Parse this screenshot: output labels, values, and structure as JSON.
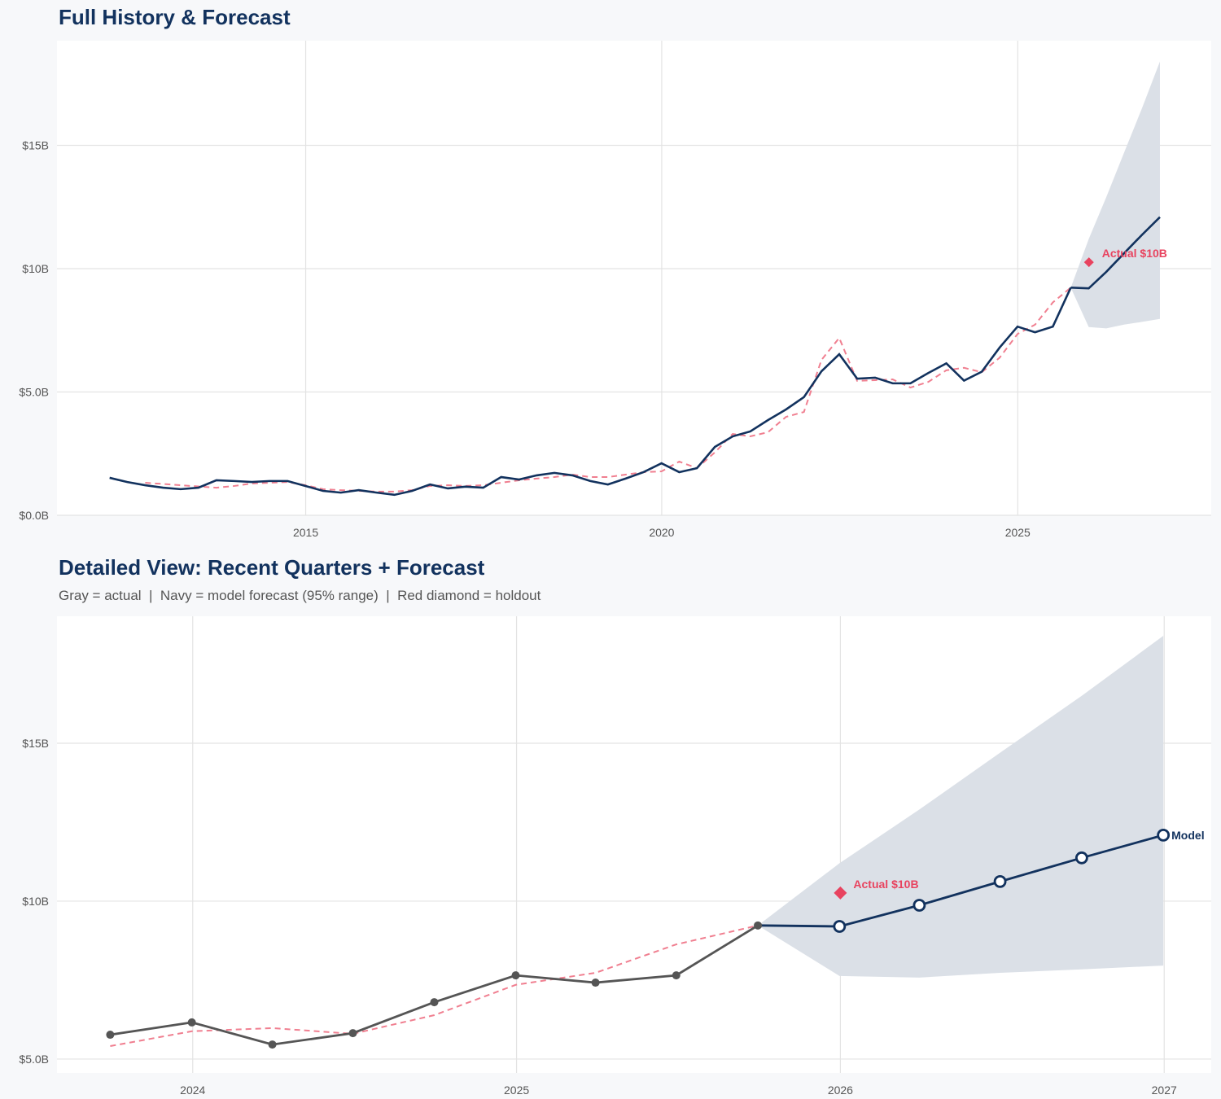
{
  "colors": {
    "navy": "#12325e",
    "gray": "#555555",
    "red": "#e8435f",
    "fitted": "#f07f90",
    "band": "#dbe0e7",
    "grid": "#e3e3e3",
    "background": "#f7f8fa",
    "plot": "#ffffff"
  },
  "chart_data": [
    {
      "type": "line",
      "title": "Full History & Forecast",
      "xlim": [
        "2011-07-05",
        "2027-09-20"
      ],
      "ylim": [
        0,
        19.24
      ],
      "grid": true,
      "x_ticks": [
        {
          "value": "2015-01-01",
          "label": "2015"
        },
        {
          "value": "2020-01-01",
          "label": "2020"
        },
        {
          "value": "2025-01-01",
          "label": "2025"
        }
      ],
      "y_ticks": [
        {
          "value": 0,
          "label": "$0.0B"
        },
        {
          "value": 5,
          "label": "$5.0B"
        },
        {
          "value": 10,
          "label": "$10B"
        },
        {
          "value": 15,
          "label": "$15B"
        }
      ],
      "history": {
        "start": "2012-03-31",
        "frequency": "quarterly",
        "values": [
          1.52,
          1.35,
          1.22,
          1.12,
          1.06,
          1.12,
          1.42,
          1.39,
          1.35,
          1.39,
          1.39,
          1.19,
          0.99,
          0.92,
          1.02,
          0.92,
          0.83,
          0.99,
          1.25,
          1.09,
          1.16,
          1.12,
          1.55,
          1.45,
          1.62,
          1.72,
          1.62,
          1.39,
          1.25,
          1.49,
          1.75,
          2.11,
          1.75,
          1.91,
          2.77,
          3.2,
          3.4,
          3.86,
          4.29,
          4.79,
          5.84,
          6.53,
          5.54,
          5.58,
          5.35,
          5.35,
          5.77,
          6.16,
          5.46,
          5.82,
          6.8,
          7.65,
          7.42,
          7.65,
          9.23
        ]
      },
      "fitted": {
        "start": "2012-09-30",
        "frequency": "quarterly",
        "values": [
          1.32,
          1.27,
          1.22,
          1.17,
          1.12,
          1.19,
          1.29,
          1.32,
          1.35,
          1.22,
          1.06,
          1.02,
          0.99,
          0.96,
          0.96,
          1.02,
          1.19,
          1.22,
          1.19,
          1.22,
          1.32,
          1.42,
          1.49,
          1.55,
          1.65,
          1.55,
          1.55,
          1.65,
          1.75,
          1.78,
          2.18,
          1.91,
          2.55,
          3.3,
          3.2,
          3.37,
          3.99,
          4.19,
          6.3,
          7.19,
          5.45,
          5.48,
          5.51,
          5.18,
          5.41,
          5.88,
          5.98,
          5.8,
          6.39,
          7.35,
          7.73,
          8.63,
          9.23
        ]
      },
      "forecast": {
        "dates": [
          "2025-09-30",
          "2025-12-31",
          "2026-03-31",
          "2026-06-30",
          "2026-09-30",
          "2026-12-31"
        ],
        "values": [
          9.23,
          9.2,
          9.87,
          10.62,
          11.37,
          12.09
        ],
        "upper": [
          9.23,
          11.2,
          12.9,
          14.7,
          16.5,
          18.4
        ],
        "lower": [
          9.23,
          7.63,
          7.58,
          7.73,
          7.84,
          7.96
        ]
      },
      "holdout": {
        "date": "2026-01-01",
        "value": 10.26,
        "label": "Actual $10B"
      }
    },
    {
      "type": "line",
      "title": "Detailed View: Recent Quarters + Forecast",
      "subtitle": "Gray = actual  |  Navy = model forecast (95% range)  |  Red diamond = holdout",
      "xlim": [
        "2023-08-01",
        "2027-02-23"
      ],
      "ylim": [
        4.56,
        19.02
      ],
      "grid": true,
      "x_ticks": [
        {
          "value": "2024-01-01",
          "label": "2024"
        },
        {
          "value": "2025-01-01",
          "label": "2025"
        },
        {
          "value": "2026-01-01",
          "label": "2026"
        },
        {
          "value": "2027-01-01",
          "label": "2027"
        }
      ],
      "y_ticks": [
        {
          "value": 5,
          "label": "$5.0B"
        },
        {
          "value": 10,
          "label": "$10B"
        },
        {
          "value": 15,
          "label": "$15B"
        }
      ],
      "history": {
        "dates": [
          "2023-09-30",
          "2023-12-31",
          "2024-03-31",
          "2024-06-30",
          "2024-09-30",
          "2024-12-31",
          "2025-03-31",
          "2025-06-30",
          "2025-09-30"
        ],
        "values": [
          5.77,
          6.16,
          5.46,
          5.82,
          6.8,
          7.65,
          7.42,
          7.65,
          9.23
        ]
      },
      "fitted": {
        "dates": [
          "2023-09-30",
          "2023-12-31",
          "2024-03-31",
          "2024-06-30",
          "2024-09-30",
          "2024-12-31",
          "2025-03-31",
          "2025-06-30",
          "2025-09-30"
        ],
        "values": [
          5.41,
          5.88,
          5.98,
          5.8,
          6.39,
          7.35,
          7.73,
          8.63,
          9.23
        ]
      },
      "forecast": {
        "dates": [
          "2025-09-30",
          "2025-12-31",
          "2026-03-31",
          "2026-06-30",
          "2026-09-30",
          "2026-12-31"
        ],
        "values": [
          9.23,
          9.2,
          9.87,
          10.62,
          11.37,
          12.09
        ],
        "upper": [
          9.23,
          11.2,
          12.9,
          14.7,
          16.5,
          18.4
        ],
        "lower": [
          9.23,
          7.63,
          7.58,
          7.73,
          7.84,
          7.96
        ],
        "end_label": "Model"
      },
      "holdout": {
        "date": "2026-01-01",
        "value": 10.26,
        "label": "Actual $10B"
      }
    }
  ]
}
